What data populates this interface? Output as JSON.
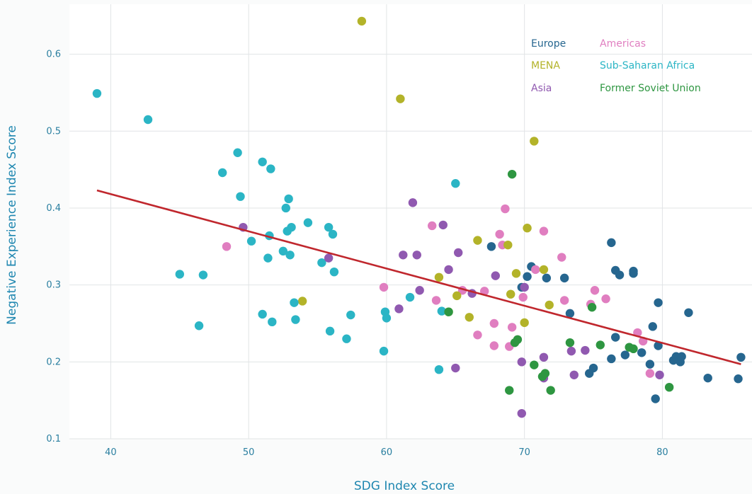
{
  "chart_data": {
    "type": "scatter",
    "xlabel": "SDG Index Score",
    "ylabel": "Negative Experience Index Score",
    "xlim": [
      37,
      86.5
    ],
    "ylim": [
      0.1,
      0.665
    ],
    "x_ticks": [
      40,
      50,
      60,
      70,
      80
    ],
    "y_ticks": [
      "0.1",
      "0.2",
      "0.3",
      "0.4",
      "0.5",
      "0.6"
    ],
    "grid": true,
    "legend_position": "top-right",
    "trendline": {
      "x": [
        39,
        85.7
      ],
      "y": [
        0.423,
        0.197
      ],
      "color": "#c0272d"
    },
    "series": [
      {
        "name": "Europe",
        "color": "#26668f",
        "points": [
          [
            67.6,
            0.35
          ],
          [
            70.5,
            0.324
          ],
          [
            70.2,
            0.311
          ],
          [
            71.6,
            0.309
          ],
          [
            72.9,
            0.309
          ],
          [
            69.8,
            0.297
          ],
          [
            73.3,
            0.263
          ],
          [
            76.3,
            0.355
          ],
          [
            76.6,
            0.319
          ],
          [
            76.9,
            0.313
          ],
          [
            77.9,
            0.318
          ],
          [
            77.9,
            0.315
          ],
          [
            79.3,
            0.246
          ],
          [
            79.7,
            0.277
          ],
          [
            81.9,
            0.264
          ],
          [
            78.5,
            0.212
          ],
          [
            79.1,
            0.197
          ],
          [
            79.7,
            0.221
          ],
          [
            76.6,
            0.232
          ],
          [
            77.3,
            0.209
          ],
          [
            75.0,
            0.192
          ],
          [
            74.7,
            0.185
          ],
          [
            76.3,
            0.204
          ],
          [
            79.5,
            0.152
          ],
          [
            80.8,
            0.202
          ],
          [
            81.0,
            0.207
          ],
          [
            81.4,
            0.207
          ],
          [
            81.3,
            0.2
          ],
          [
            83.3,
            0.179
          ],
          [
            85.5,
            0.178
          ],
          [
            85.7,
            0.206
          ]
        ]
      },
      {
        "name": "Americas",
        "color": "#e07ec0",
        "points": [
          [
            48.4,
            0.35
          ],
          [
            63.3,
            0.377
          ],
          [
            68.6,
            0.399
          ],
          [
            68.2,
            0.366
          ],
          [
            68.4,
            0.352
          ],
          [
            71.4,
            0.37
          ],
          [
            72.7,
            0.336
          ],
          [
            65.5,
            0.293
          ],
          [
            66.6,
            0.235
          ],
          [
            67.8,
            0.25
          ],
          [
            67.8,
            0.221
          ],
          [
            68.9,
            0.22
          ],
          [
            69.1,
            0.245
          ],
          [
            69.9,
            0.284
          ],
          [
            70.8,
            0.32
          ],
          [
            72.9,
            0.28
          ],
          [
            75.1,
            0.293
          ],
          [
            75.9,
            0.282
          ],
          [
            74.8,
            0.275
          ],
          [
            78.2,
            0.238
          ],
          [
            78.6,
            0.227
          ],
          [
            79.1,
            0.185
          ],
          [
            59.8,
            0.297
          ],
          [
            63.6,
            0.28
          ],
          [
            67.1,
            0.292
          ]
        ]
      },
      {
        "name": "MENA",
        "color": "#b3b329",
        "points": [
          [
            58.2,
            0.643
          ],
          [
            61.0,
            0.542
          ],
          [
            70.7,
            0.487
          ],
          [
            70.2,
            0.374
          ],
          [
            66.6,
            0.358
          ],
          [
            68.8,
            0.352
          ],
          [
            63.8,
            0.31
          ],
          [
            65.1,
            0.286
          ],
          [
            66.0,
            0.258
          ],
          [
            69.0,
            0.288
          ],
          [
            69.4,
            0.315
          ],
          [
            71.4,
            0.32
          ],
          [
            70.0,
            0.251
          ],
          [
            71.8,
            0.274
          ],
          [
            53.9,
            0.279
          ],
          [
            64.5,
            0.265
          ]
        ]
      },
      {
        "name": "Sub-Saharan Africa",
        "color": "#2bb5c5",
        "points": [
          [
            39.0,
            0.549
          ],
          [
            42.7,
            0.515
          ],
          [
            49.2,
            0.472
          ],
          [
            48.1,
            0.446
          ],
          [
            51.0,
            0.46
          ],
          [
            51.6,
            0.451
          ],
          [
            49.4,
            0.415
          ],
          [
            52.9,
            0.412
          ],
          [
            52.7,
            0.4
          ],
          [
            53.1,
            0.375
          ],
          [
            52.8,
            0.37
          ],
          [
            54.3,
            0.381
          ],
          [
            55.8,
            0.375
          ],
          [
            56.1,
            0.366
          ],
          [
            51.5,
            0.364
          ],
          [
            50.2,
            0.357
          ],
          [
            52.5,
            0.344
          ],
          [
            51.4,
            0.335
          ],
          [
            53.0,
            0.339
          ],
          [
            55.3,
            0.329
          ],
          [
            56.2,
            0.317
          ],
          [
            45.0,
            0.314
          ],
          [
            46.7,
            0.313
          ],
          [
            51.0,
            0.262
          ],
          [
            53.3,
            0.277
          ],
          [
            51.7,
            0.252
          ],
          [
            53.4,
            0.255
          ],
          [
            46.4,
            0.247
          ],
          [
            55.9,
            0.24
          ],
          [
            57.1,
            0.23
          ],
          [
            57.4,
            0.261
          ],
          [
            59.9,
            0.265
          ],
          [
            60.0,
            0.257
          ],
          [
            59.8,
            0.214
          ],
          [
            61.7,
            0.284
          ],
          [
            65.0,
            0.432
          ],
          [
            63.8,
            0.19
          ],
          [
            64.0,
            0.266
          ]
        ]
      },
      {
        "name": "Asia",
        "color": "#9059b0",
        "points": [
          [
            49.6,
            0.375
          ],
          [
            55.8,
            0.335
          ],
          [
            61.9,
            0.407
          ],
          [
            61.2,
            0.339
          ],
          [
            62.2,
            0.339
          ],
          [
            64.1,
            0.378
          ],
          [
            65.2,
            0.342
          ],
          [
            64.5,
            0.32
          ],
          [
            62.4,
            0.293
          ],
          [
            60.9,
            0.269
          ],
          [
            66.2,
            0.289
          ],
          [
            67.9,
            0.312
          ],
          [
            70.0,
            0.297
          ],
          [
            65.0,
            0.192
          ],
          [
            69.8,
            0.2
          ],
          [
            71.4,
            0.206
          ],
          [
            71.4,
            0.179
          ],
          [
            73.4,
            0.214
          ],
          [
            74.4,
            0.215
          ],
          [
            73.6,
            0.183
          ],
          [
            79.8,
            0.183
          ],
          [
            69.8,
            0.133
          ]
        ]
      },
      {
        "name": "Former Soviet Union",
        "color": "#2e9641",
        "points": [
          [
            69.1,
            0.444
          ],
          [
            64.5,
            0.265
          ],
          [
            69.5,
            0.229
          ],
          [
            69.3,
            0.225
          ],
          [
            68.9,
            0.163
          ],
          [
            70.7,
            0.196
          ],
          [
            71.3,
            0.181
          ],
          [
            71.5,
            0.185
          ],
          [
            71.9,
            0.163
          ],
          [
            73.3,
            0.225
          ],
          [
            74.9,
            0.271
          ],
          [
            75.5,
            0.222
          ],
          [
            77.6,
            0.219
          ],
          [
            77.9,
            0.217
          ],
          [
            80.5,
            0.167
          ]
        ]
      }
    ]
  }
}
